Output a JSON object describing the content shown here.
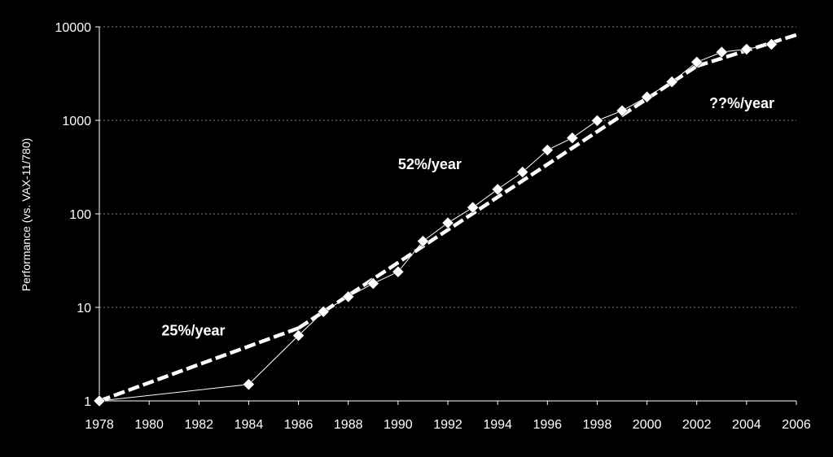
{
  "chart_data": {
    "type": "line",
    "title": "",
    "xlabel": "",
    "ylabel": "Performance (vs. VAX-11/780)",
    "y_scale": "log",
    "xlim": [
      1978,
      2006
    ],
    "ylim": [
      1,
      10000
    ],
    "grid": "horizontal dotted",
    "x_ticks": [
      "1978",
      "1980",
      "1982",
      "1984",
      "1986",
      "1988",
      "1990",
      "1992",
      "1994",
      "1996",
      "1998",
      "2000",
      "2002",
      "2004",
      "2006"
    ],
    "y_ticks": [
      "1",
      "10",
      "100",
      "1000",
      "10000"
    ],
    "series": [
      {
        "x": [
          1978,
          1984,
          1986,
          1987,
          1988,
          1989,
          1990,
          1991,
          1992,
          1993,
          1994,
          1995,
          1996,
          1997,
          1998,
          1999,
          2000,
          2001,
          2002,
          2003,
          2004,
          2005
        ],
        "values": [
          1,
          1.5,
          5,
          9,
          13,
          18,
          24,
          51,
          80,
          117,
          183,
          280,
          481,
          649,
          993,
          1267,
          1779,
          2584,
          4195,
          5364,
          5764,
          6505
        ],
        "style": "solid thin white with diamond markers"
      }
    ],
    "trend_lines": [
      {
        "x": [
          1978,
          1986
        ],
        "values": [
          1,
          6
        ],
        "style": "dashed white"
      },
      {
        "x": [
          1986,
          2002
        ],
        "values": [
          6,
          3800
        ],
        "style": "dashed white"
      },
      {
        "x": [
          2002,
          2006
        ],
        "values": [
          3800,
          8200
        ],
        "style": "dashed white"
      }
    ],
    "annotations": [
      {
        "text": "25%/year",
        "x": 1980.5,
        "y": 5
      },
      {
        "text": "52%/year",
        "x": 1990.0,
        "y": 300
      },
      {
        "text": "??%/year",
        "x": 2002.5,
        "y": 1350
      }
    ],
    "colors": {
      "background": "#000000",
      "foreground": "#ffffff",
      "grid": "#888888"
    }
  }
}
